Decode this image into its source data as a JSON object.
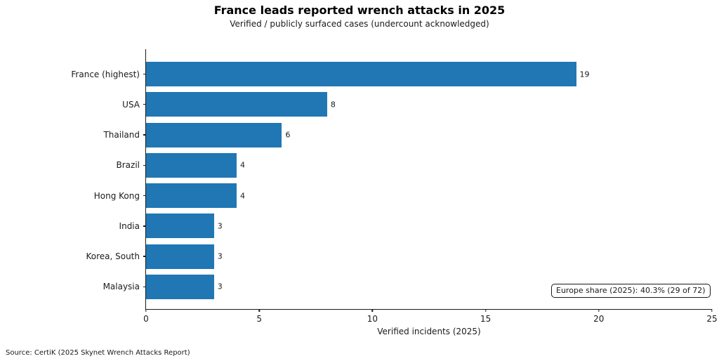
{
  "colors": {
    "bar": "#2077b4",
    "axis": "#1a1a1a",
    "title": "#000000"
  },
  "source_note": "Source: CertiK (2025 Skynet Wrench Attacks Report)",
  "chart_data": {
    "type": "bar",
    "orientation": "horizontal",
    "title": "France leads reported wrench attacks in 2025",
    "subtitle": "Verified / publicly surfaced cases (undercount acknowledged)",
    "categories": [
      "France (highest)",
      "USA",
      "Thailand",
      "Brazil",
      "Hong Kong",
      "India",
      "Korea, South",
      "Malaysia"
    ],
    "values": [
      19,
      8,
      6,
      4,
      4,
      3,
      3,
      3
    ],
    "xlabel": "Verified incidents (2025)",
    "ylabel": "",
    "xlim": [
      0,
      25
    ],
    "xticks": [
      0,
      5,
      10,
      15,
      20,
      25
    ],
    "grid": false,
    "legend": null,
    "annotation": "Europe share (2025): 40.3% (29 of 72)"
  }
}
